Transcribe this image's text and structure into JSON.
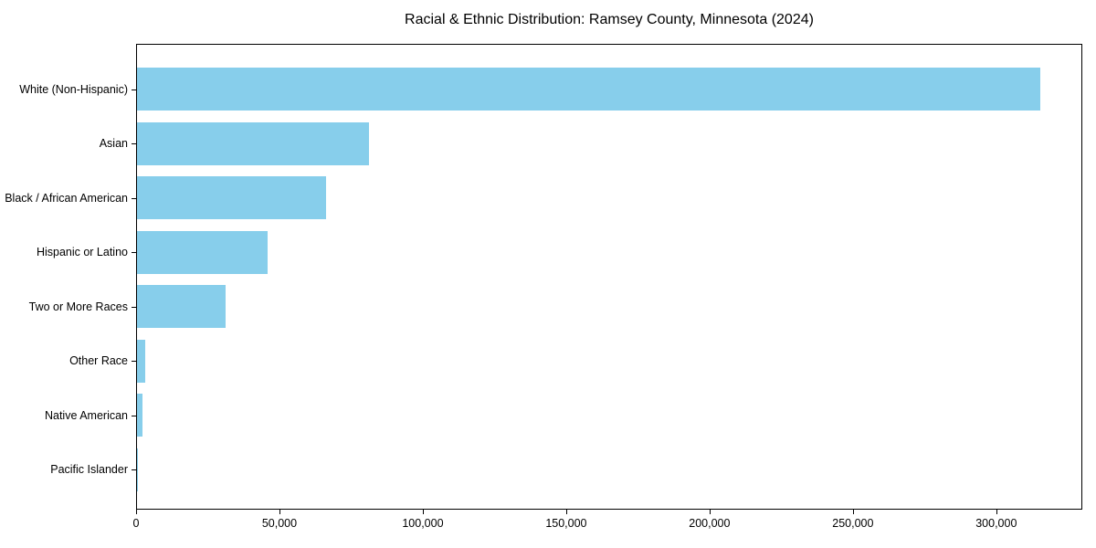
{
  "chart_data": {
    "type": "bar",
    "orientation": "horizontal",
    "title": "Racial & Ethnic Distribution: Ramsey County, Minnesota (2024)",
    "categories": [
      "White (Non-Hispanic)",
      "Asian",
      "Black / African American",
      "Hispanic or Latino",
      "Two or More Races",
      "Other Race",
      "Native American",
      "Pacific Islander"
    ],
    "values": [
      315000,
      81000,
      66000,
      45500,
      31000,
      2800,
      2000,
      300
    ],
    "xlabel": "",
    "ylabel": "",
    "xlim": [
      0,
      330000
    ],
    "xticks": [
      0,
      50000,
      100000,
      150000,
      200000,
      250000,
      300000
    ],
    "xtick_labels": [
      "0",
      "50,000",
      "100,000",
      "150,000",
      "200,000",
      "250,000",
      "300,000"
    ],
    "bar_color": "#87CEEB",
    "background_color": "#ffffff",
    "grid": false,
    "legend": null
  }
}
